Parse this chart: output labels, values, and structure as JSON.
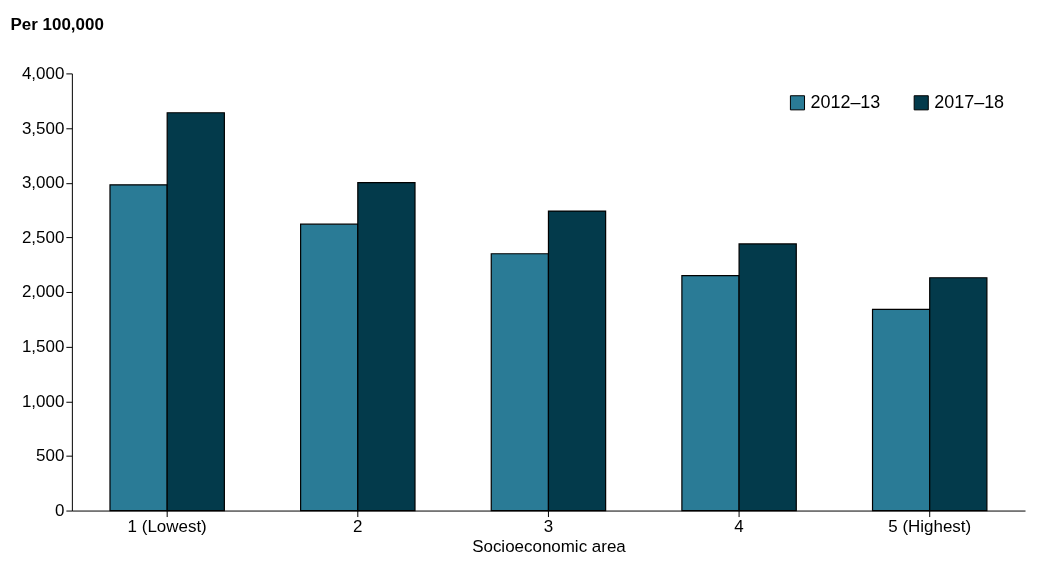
{
  "chart_data": {
    "type": "bar",
    "ylabel": "Per 100,000",
    "xlabel": "Socioeconomic area",
    "categories": [
      "1 (Lowest)",
      "2",
      "3",
      "4",
      "5 (Highest)"
    ],
    "series": [
      {
        "name": "2012–13",
        "color": "#2a7b96",
        "values": [
          2980,
          2620,
          2350,
          2150,
          1840
        ]
      },
      {
        "name": "2017–18",
        "color": "#033a4b",
        "values": [
          3640,
          3000,
          2740,
          2440,
          2130
        ]
      }
    ],
    "ylim": [
      0,
      4000
    ],
    "yticks": [
      0,
      {
        "value": 500,
        "label": "500"
      },
      {
        "value": 1000,
        "label": "1,000"
      },
      {
        "value": 1500,
        "label": "1,500"
      },
      {
        "value": 2000,
        "label": "2,000"
      },
      {
        "value": 2500,
        "label": "2,500"
      },
      {
        "value": 3000,
        "label": "3,000"
      },
      {
        "value": 3500,
        "label": "3,500"
      },
      {
        "value": 4000,
        "label": "4,000"
      }
    ],
    "grid": false,
    "legend": "top right"
  }
}
